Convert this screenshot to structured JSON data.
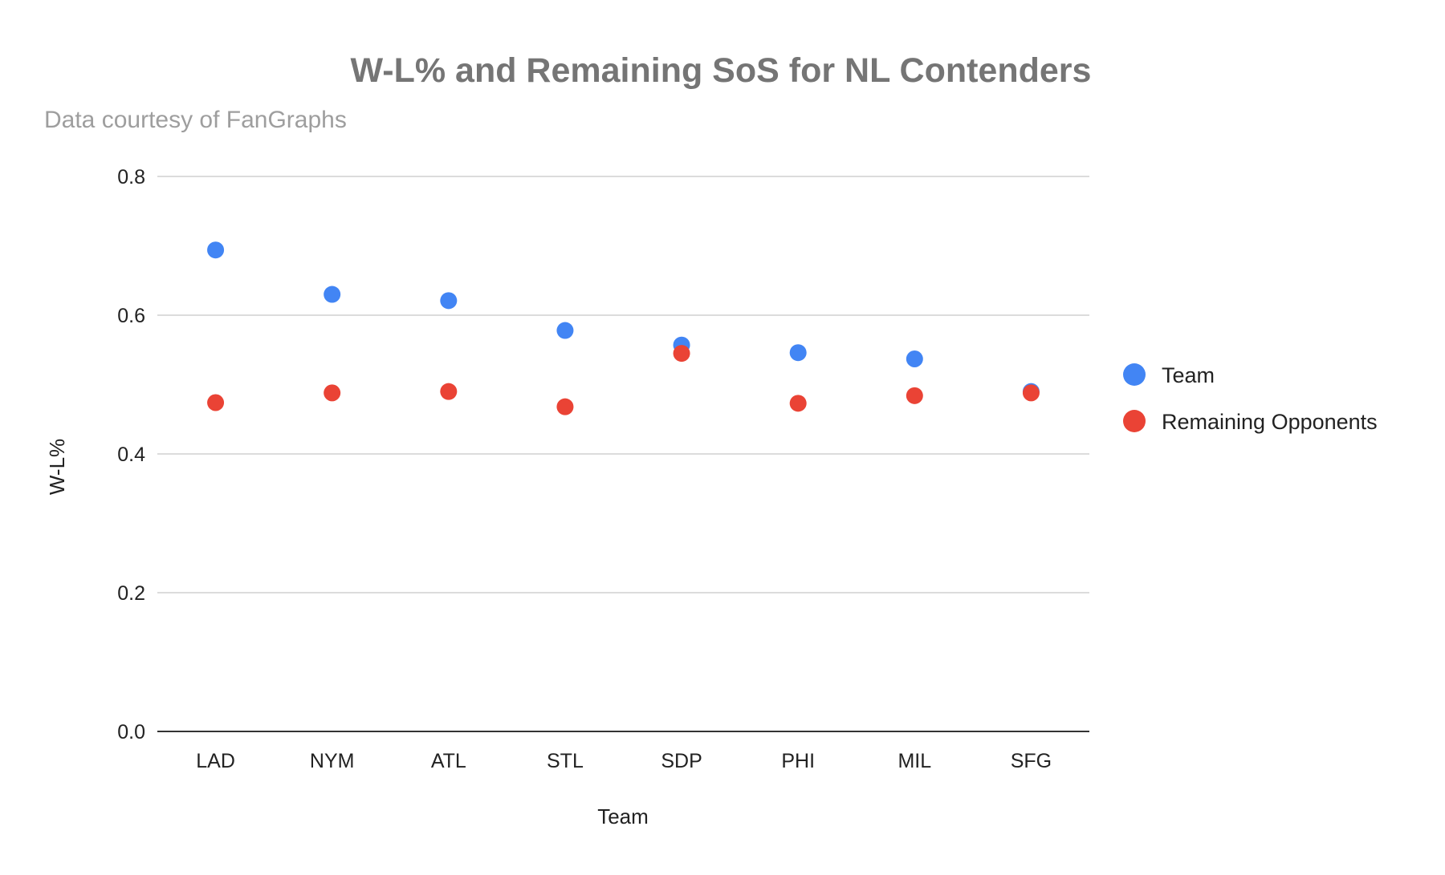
{
  "chart_data": {
    "type": "scatter",
    "title": "W-L% and Remaining SoS for NL Contenders",
    "subtitle": "Data courtesy of FanGraphs",
    "xlabel": "Team",
    "ylabel": "W-L%",
    "categories": [
      "LAD",
      "NYM",
      "ATL",
      "STL",
      "SDP",
      "PHI",
      "MIL",
      "SFG"
    ],
    "ylim": [
      0,
      0.8
    ],
    "yticks": [
      "0.0",
      "0.2",
      "0.4",
      "0.6",
      "0.8"
    ],
    "ytick_values": [
      0,
      0.2,
      0.4,
      0.6,
      0.8
    ],
    "grid": true,
    "legend_position": "right",
    "series": [
      {
        "name": "Team",
        "color": "#4285f4",
        "values": [
          0.694,
          0.63,
          0.621,
          0.578,
          0.557,
          0.546,
          0.537,
          0.49
        ]
      },
      {
        "name": "Remaining Opponents",
        "color": "#ea4335",
        "values": [
          0.474,
          0.488,
          0.49,
          0.468,
          0.545,
          0.473,
          0.484,
          0.488
        ]
      }
    ]
  }
}
